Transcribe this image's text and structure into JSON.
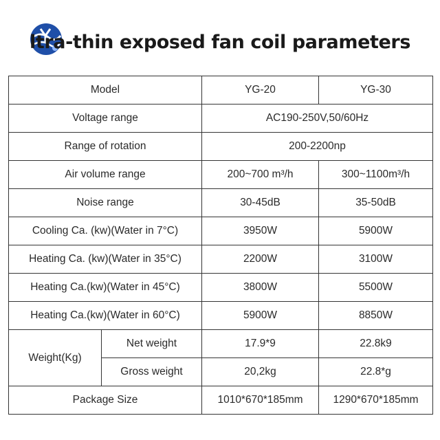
{
  "header": {
    "title": "ltra-thin exposed fan coil parameters",
    "logo_icon": "globe-logo-icon",
    "logo_color": "#1f4fa8"
  },
  "table": {
    "model": {
      "label": "Model",
      "yg20": "YG-20",
      "yg30": "YG-30"
    },
    "voltage": {
      "label": "Voltage range",
      "value": "AC190-250V,50/60Hz"
    },
    "rotation": {
      "label": "Range of rotation",
      "value": "200-2200np"
    },
    "air_volume": {
      "label": "Air volume range",
      "yg20": "200~700 m³/h",
      "yg30": "300~1100m³/h"
    },
    "noise": {
      "label": "Noise range",
      "yg20": "30-45dB",
      "yg30": "35-50dB"
    },
    "cooling_7": {
      "label": "Cooling Ca. (kw)(Water in 7°C)",
      "yg20": "3950W",
      "yg30": "5900W"
    },
    "heating_35": {
      "label": "Heating Ca. (kw)(Water in 35°C)",
      "yg20": "2200W",
      "yg30": "3100W"
    },
    "heating_45": {
      "label": "Heating Ca.(kw)(Water in 45°C)",
      "yg20": "3800W",
      "yg30": "5500W"
    },
    "heating_60": {
      "label": "Heating Ca.(kw)(Water in 60°C)",
      "yg20": "5900W",
      "yg30": "8850W"
    },
    "weight": {
      "label": "Weight(Kg)",
      "net": {
        "label": "Net weight",
        "yg20": "17.9*9",
        "yg30": "22.8k9"
      },
      "gross": {
        "label": "Gross weight",
        "yg20": "20,2kg",
        "yg30": "22.8*g"
      }
    },
    "package": {
      "label": "Package Size",
      "yg20": "1010*670*185mm",
      "yg30": "1290*670*185mm"
    }
  }
}
